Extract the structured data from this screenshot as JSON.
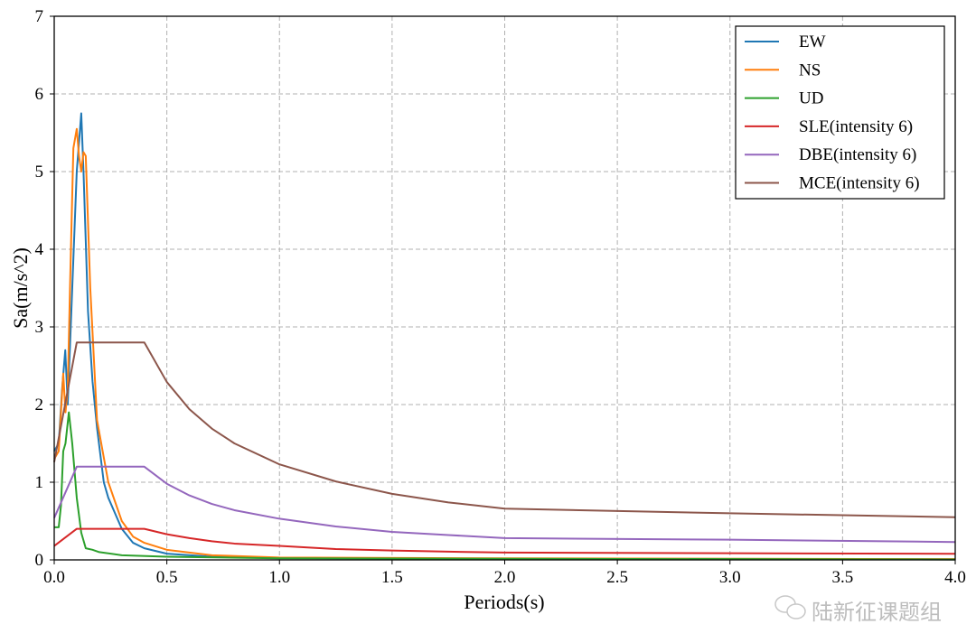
{
  "chart_data": {
    "type": "line",
    "title": "",
    "xlabel": "Periods(s)",
    "ylabel": "Sa(m/s^2)",
    "xlim": [
      0,
      4.0
    ],
    "ylim": [
      0,
      7
    ],
    "xticks": [
      "0.0",
      "0.5",
      "1.0",
      "1.5",
      "2.0",
      "2.5",
      "3.0",
      "3.5",
      "4.0"
    ],
    "yticks": [
      "0",
      "1",
      "2",
      "3",
      "4",
      "5",
      "6",
      "7"
    ],
    "grid": true,
    "legend_position": "top-right",
    "series": [
      {
        "name": "EW",
        "color": "#1f77b4",
        "points": [
          [
            0,
            1.4
          ],
          [
            0.02,
            1.5
          ],
          [
            0.035,
            2.2
          ],
          [
            0.049,
            2.7
          ],
          [
            0.06,
            2.0
          ],
          [
            0.08,
            3.5
          ],
          [
            0.1,
            5.0
          ],
          [
            0.12,
            5.75
          ],
          [
            0.13,
            5.0
          ],
          [
            0.15,
            3.2
          ],
          [
            0.17,
            2.3
          ],
          [
            0.19,
            1.7
          ],
          [
            0.22,
            1.0
          ],
          [
            0.24,
            0.8
          ],
          [
            0.3,
            0.4
          ],
          [
            0.35,
            0.22
          ],
          [
            0.4,
            0.15
          ],
          [
            0.5,
            0.08
          ],
          [
            0.7,
            0.04
          ],
          [
            1.0,
            0.025
          ],
          [
            2.0,
            0.015
          ],
          [
            4.0,
            0.01
          ]
        ]
      },
      {
        "name": "NS",
        "color": "#ff7f0e",
        "points": [
          [
            0,
            1.3
          ],
          [
            0.02,
            1.4
          ],
          [
            0.04,
            2.4
          ],
          [
            0.05,
            1.9
          ],
          [
            0.06,
            2.2
          ],
          [
            0.07,
            3.5
          ],
          [
            0.085,
            5.3
          ],
          [
            0.1,
            5.55
          ],
          [
            0.11,
            5.2
          ],
          [
            0.12,
            5.0
          ],
          [
            0.13,
            5.25
          ],
          [
            0.14,
            5.2
          ],
          [
            0.16,
            3.5
          ],
          [
            0.19,
            1.8
          ],
          [
            0.24,
            1.0
          ],
          [
            0.3,
            0.5
          ],
          [
            0.35,
            0.3
          ],
          [
            0.4,
            0.22
          ],
          [
            0.5,
            0.13
          ],
          [
            0.7,
            0.06
          ],
          [
            1.0,
            0.03
          ],
          [
            2.0,
            0.02
          ],
          [
            4.0,
            0.01
          ]
        ]
      },
      {
        "name": "UD",
        "color": "#2ca02c",
        "points": [
          [
            0,
            0.42
          ],
          [
            0.02,
            0.42
          ],
          [
            0.03,
            0.7
          ],
          [
            0.04,
            1.4
          ],
          [
            0.05,
            1.5
          ],
          [
            0.065,
            1.9
          ],
          [
            0.08,
            1.5
          ],
          [
            0.1,
            0.8
          ],
          [
            0.12,
            0.35
          ],
          [
            0.14,
            0.15
          ],
          [
            0.17,
            0.13
          ],
          [
            0.2,
            0.1
          ],
          [
            0.3,
            0.06
          ],
          [
            0.5,
            0.04
          ],
          [
            1.0,
            0.02
          ],
          [
            4.0,
            0.005
          ]
        ]
      },
      {
        "name": "SLE(intensity 6)",
        "color": "#d62728",
        "points": [
          [
            0,
            0.18
          ],
          [
            0.1,
            0.4
          ],
          [
            0.4,
            0.4
          ],
          [
            0.5,
            0.33
          ],
          [
            0.6,
            0.28
          ],
          [
            0.7,
            0.24
          ],
          [
            0.8,
            0.21
          ],
          [
            1.0,
            0.18
          ],
          [
            1.25,
            0.14
          ],
          [
            1.5,
            0.12
          ],
          [
            1.75,
            0.106
          ],
          [
            2.0,
            0.094
          ],
          [
            3.0,
            0.086
          ],
          [
            4.0,
            0.078
          ]
        ]
      },
      {
        "name": "DBE(intensity 6)",
        "color": "#9467bd",
        "points": [
          [
            0,
            0.54
          ],
          [
            0.1,
            1.2
          ],
          [
            0.4,
            1.2
          ],
          [
            0.5,
            0.98
          ],
          [
            0.6,
            0.83
          ],
          [
            0.7,
            0.72
          ],
          [
            0.8,
            0.64
          ],
          [
            1.0,
            0.53
          ],
          [
            1.25,
            0.43
          ],
          [
            1.5,
            0.36
          ],
          [
            1.75,
            0.32
          ],
          [
            2.0,
            0.28
          ],
          [
            3.0,
            0.26
          ],
          [
            4.0,
            0.23
          ]
        ]
      },
      {
        "name": "MCE(intensity 6)",
        "color": "#8c564b",
        "points": [
          [
            0,
            1.26
          ],
          [
            0.1,
            2.8
          ],
          [
            0.4,
            2.8
          ],
          [
            0.5,
            2.29
          ],
          [
            0.6,
            1.94
          ],
          [
            0.7,
            1.69
          ],
          [
            0.8,
            1.5
          ],
          [
            1.0,
            1.23
          ],
          [
            1.25,
            1.01
          ],
          [
            1.5,
            0.85
          ],
          [
            1.75,
            0.74
          ],
          [
            2.0,
            0.66
          ],
          [
            3.0,
            0.6
          ],
          [
            4.0,
            0.55
          ]
        ]
      }
    ]
  },
  "watermark": "陆新征课题组"
}
